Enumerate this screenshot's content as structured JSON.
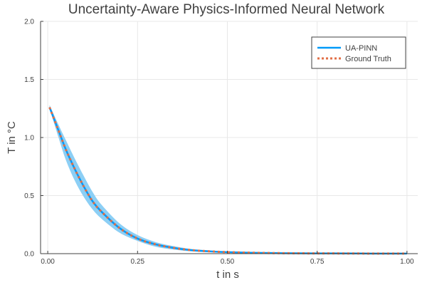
{
  "chart_data": {
    "type": "line",
    "title": "Uncertainty-Aware Physics-Informed Neural Network",
    "xlabel": "t in s",
    "ylabel": "T in °C",
    "xlim": [
      -0.02,
      1.03
    ],
    "ylim": [
      0,
      2
    ],
    "xticks": [
      0,
      0.25,
      0.5,
      0.75,
      1.0
    ],
    "xtick_labels": [
      "0.00",
      "0.25",
      "0.50",
      "0.75",
      "1.00"
    ],
    "yticks": [
      0,
      0.5,
      1.0,
      1.5,
      2.0
    ],
    "ytick_labels": [
      "0.0",
      "0.5",
      "1.0",
      "1.5",
      "2.0"
    ],
    "grid": true,
    "legend_position": "top-right",
    "colors": {
      "prediction": "#009af9",
      "band": "#8ccff5",
      "ground_truth": "#e26f46",
      "axis": "#404040",
      "grid": "#e8e8e8"
    },
    "series": [
      {
        "name": "UA-PINN",
        "style": "solid",
        "x": [
          0.005,
          0.03,
          0.05,
          0.075,
          0.1,
          0.125,
          0.15,
          0.2,
          0.25,
          0.3,
          0.35,
          0.4,
          0.45,
          0.5,
          0.6,
          0.7,
          0.8,
          0.9,
          1.0
        ],
        "y": [
          1.26,
          1.06,
          0.9,
          0.73,
          0.58,
          0.45,
          0.36,
          0.22,
          0.13,
          0.08,
          0.05,
          0.03,
          0.02,
          0.013,
          0.006,
          0.003,
          0.002,
          0.001,
          0.001
        ],
        "y_lower": [
          1.25,
          1.0,
          0.81,
          0.63,
          0.49,
          0.38,
          0.3,
          0.18,
          0.11,
          0.06,
          0.035,
          0.02,
          0.012,
          0.008,
          0.003,
          0.001,
          0.0,
          0.0,
          0.0
        ],
        "y_upper": [
          1.28,
          1.11,
          0.98,
          0.82,
          0.67,
          0.53,
          0.42,
          0.26,
          0.16,
          0.1,
          0.065,
          0.04,
          0.028,
          0.018,
          0.009,
          0.005,
          0.003,
          0.002,
          0.002
        ]
      },
      {
        "name": "Ground Truth",
        "style": "dotted",
        "x": [
          0.005,
          0.03,
          0.05,
          0.075,
          0.1,
          0.125,
          0.15,
          0.2,
          0.25,
          0.3,
          0.35,
          0.4,
          0.45,
          0.5,
          0.6,
          0.7,
          0.8,
          0.9,
          1.0
        ],
        "y": [
          1.26,
          1.06,
          0.9,
          0.73,
          0.58,
          0.45,
          0.36,
          0.22,
          0.13,
          0.08,
          0.05,
          0.03,
          0.02,
          0.013,
          0.006,
          0.003,
          0.002,
          0.001,
          0.001
        ]
      }
    ]
  }
}
